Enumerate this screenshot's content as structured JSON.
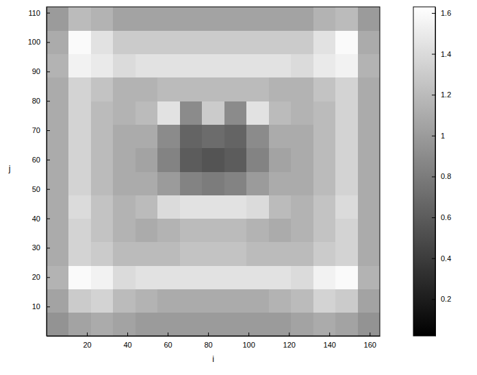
{
  "chart_data": {
    "type": "heatmap",
    "x_label": "i",
    "y_label": "j",
    "x": [
      5.5,
      16.5,
      27.5,
      38.5,
      49.5,
      60.5,
      71.5,
      82.5,
      93.5,
      104.5,
      115.5,
      126.5,
      137.5,
      148.5,
      159.5
    ],
    "y": [
      4,
      12,
      20,
      28,
      36,
      44,
      52,
      60,
      68,
      76,
      84,
      92,
      100,
      108
    ],
    "values": [
      [
        0.95,
        1.05,
        1.1,
        1.05,
        1.0,
        1.0,
        1.0,
        1.0,
        1.0,
        1.0,
        1.0,
        1.05,
        1.1,
        1.05,
        0.95
      ],
      [
        1.05,
        1.3,
        1.35,
        1.2,
        1.15,
        1.1,
        1.1,
        1.1,
        1.1,
        1.1,
        1.15,
        1.2,
        1.35,
        1.3,
        1.05
      ],
      [
        1.15,
        1.6,
        1.55,
        1.4,
        1.45,
        1.45,
        1.45,
        1.45,
        1.45,
        1.45,
        1.45,
        1.4,
        1.55,
        1.6,
        1.15
      ],
      [
        1.1,
        1.35,
        1.3,
        1.2,
        1.2,
        1.2,
        1.25,
        1.25,
        1.25,
        1.2,
        1.2,
        1.2,
        1.3,
        1.35,
        1.1
      ],
      [
        1.1,
        1.35,
        1.25,
        1.15,
        1.1,
        1.15,
        1.2,
        1.2,
        1.2,
        1.15,
        1.1,
        1.15,
        1.25,
        1.35,
        1.1
      ],
      [
        1.1,
        1.4,
        1.25,
        1.15,
        1.2,
        1.4,
        1.45,
        1.45,
        1.45,
        1.4,
        1.2,
        1.15,
        1.25,
        1.4,
        1.1
      ],
      [
        1.1,
        1.35,
        1.2,
        1.1,
        1.1,
        1.0,
        0.85,
        0.8,
        0.85,
        1.0,
        1.1,
        1.1,
        1.2,
        1.35,
        1.1
      ],
      [
        1.1,
        1.35,
        1.2,
        1.1,
        1.05,
        0.85,
        0.6,
        0.55,
        0.6,
        0.85,
        1.05,
        1.1,
        1.2,
        1.35,
        1.1
      ],
      [
        1.1,
        1.35,
        1.2,
        1.1,
        1.1,
        0.9,
        0.65,
        0.7,
        0.65,
        0.9,
        1.1,
        1.1,
        1.2,
        1.35,
        1.1
      ],
      [
        1.1,
        1.35,
        1.2,
        1.15,
        1.2,
        1.45,
        0.9,
        1.3,
        0.9,
        1.45,
        1.2,
        1.15,
        1.2,
        1.35,
        1.1
      ],
      [
        1.1,
        1.35,
        1.25,
        1.15,
        1.15,
        1.2,
        1.2,
        1.2,
        1.2,
        1.2,
        1.15,
        1.15,
        1.25,
        1.35,
        1.1
      ],
      [
        1.15,
        1.55,
        1.5,
        1.4,
        1.45,
        1.45,
        1.45,
        1.45,
        1.45,
        1.45,
        1.45,
        1.4,
        1.5,
        1.55,
        1.15
      ],
      [
        1.1,
        1.6,
        1.45,
        1.3,
        1.3,
        1.3,
        1.3,
        1.3,
        1.3,
        1.3,
        1.3,
        1.3,
        1.45,
        1.6,
        1.1
      ],
      [
        1.0,
        1.2,
        1.15,
        1.05,
        1.05,
        1.05,
        1.05,
        1.05,
        1.05,
        1.05,
        1.05,
        1.05,
        1.15,
        1.2,
        1.0
      ]
    ],
    "xlim": [
      0,
      165
    ],
    "ylim": [
      0,
      112
    ],
    "xticks": [
      20,
      40,
      60,
      80,
      100,
      120,
      140,
      160
    ],
    "yticks": [
      10,
      20,
      30,
      40,
      50,
      60,
      70,
      80,
      90,
      100,
      110
    ],
    "colorbar": {
      "range": [
        0.02,
        1.63
      ],
      "ticks": [
        0.2,
        0.4,
        0.6,
        0.8,
        1,
        1.2,
        1.4,
        1.6
      ]
    }
  }
}
